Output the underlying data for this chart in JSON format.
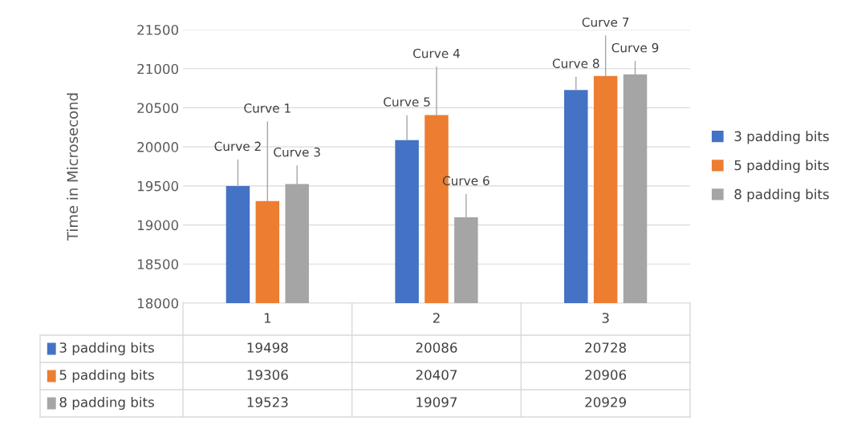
{
  "chart_data": {
    "type": "bar",
    "ylabel": "Time in Microsecond",
    "categories": [
      "1",
      "2",
      "3"
    ],
    "series": [
      {
        "name": "3 padding bits",
        "color": "#4472c4",
        "values": [
          19498,
          20086,
          20728
        ]
      },
      {
        "name": "5 padding bits",
        "color": "#ed7d31",
        "values": [
          19306,
          20407,
          20906
        ]
      },
      {
        "name": "8 padding bits",
        "color": "#a5a5a5",
        "values": [
          19523,
          19097,
          20929
        ]
      }
    ],
    "ylim": [
      18000,
      21500
    ],
    "yticks": [
      18000,
      18500,
      19000,
      19500,
      20000,
      20500,
      21000,
      21500
    ],
    "grid": "y",
    "legend": "right",
    "data_labels": true,
    "annotations": [
      {
        "text": "Curve 2",
        "y": 19498
      },
      {
        "text": "Curve 1",
        "y": 19306
      },
      {
        "text": "Curve 3",
        "y": 19523
      },
      {
        "text": "Curve 5",
        "y": 20086
      },
      {
        "text": "Curve 4",
        "y": 20407
      },
      {
        "text": "Curve 6",
        "y": 19097
      },
      {
        "text": "Curve 8",
        "y": 20728
      },
      {
        "text": "Curve 7",
        "y": 20906
      },
      {
        "text": "Curve 9",
        "y": 20929
      }
    ]
  }
}
